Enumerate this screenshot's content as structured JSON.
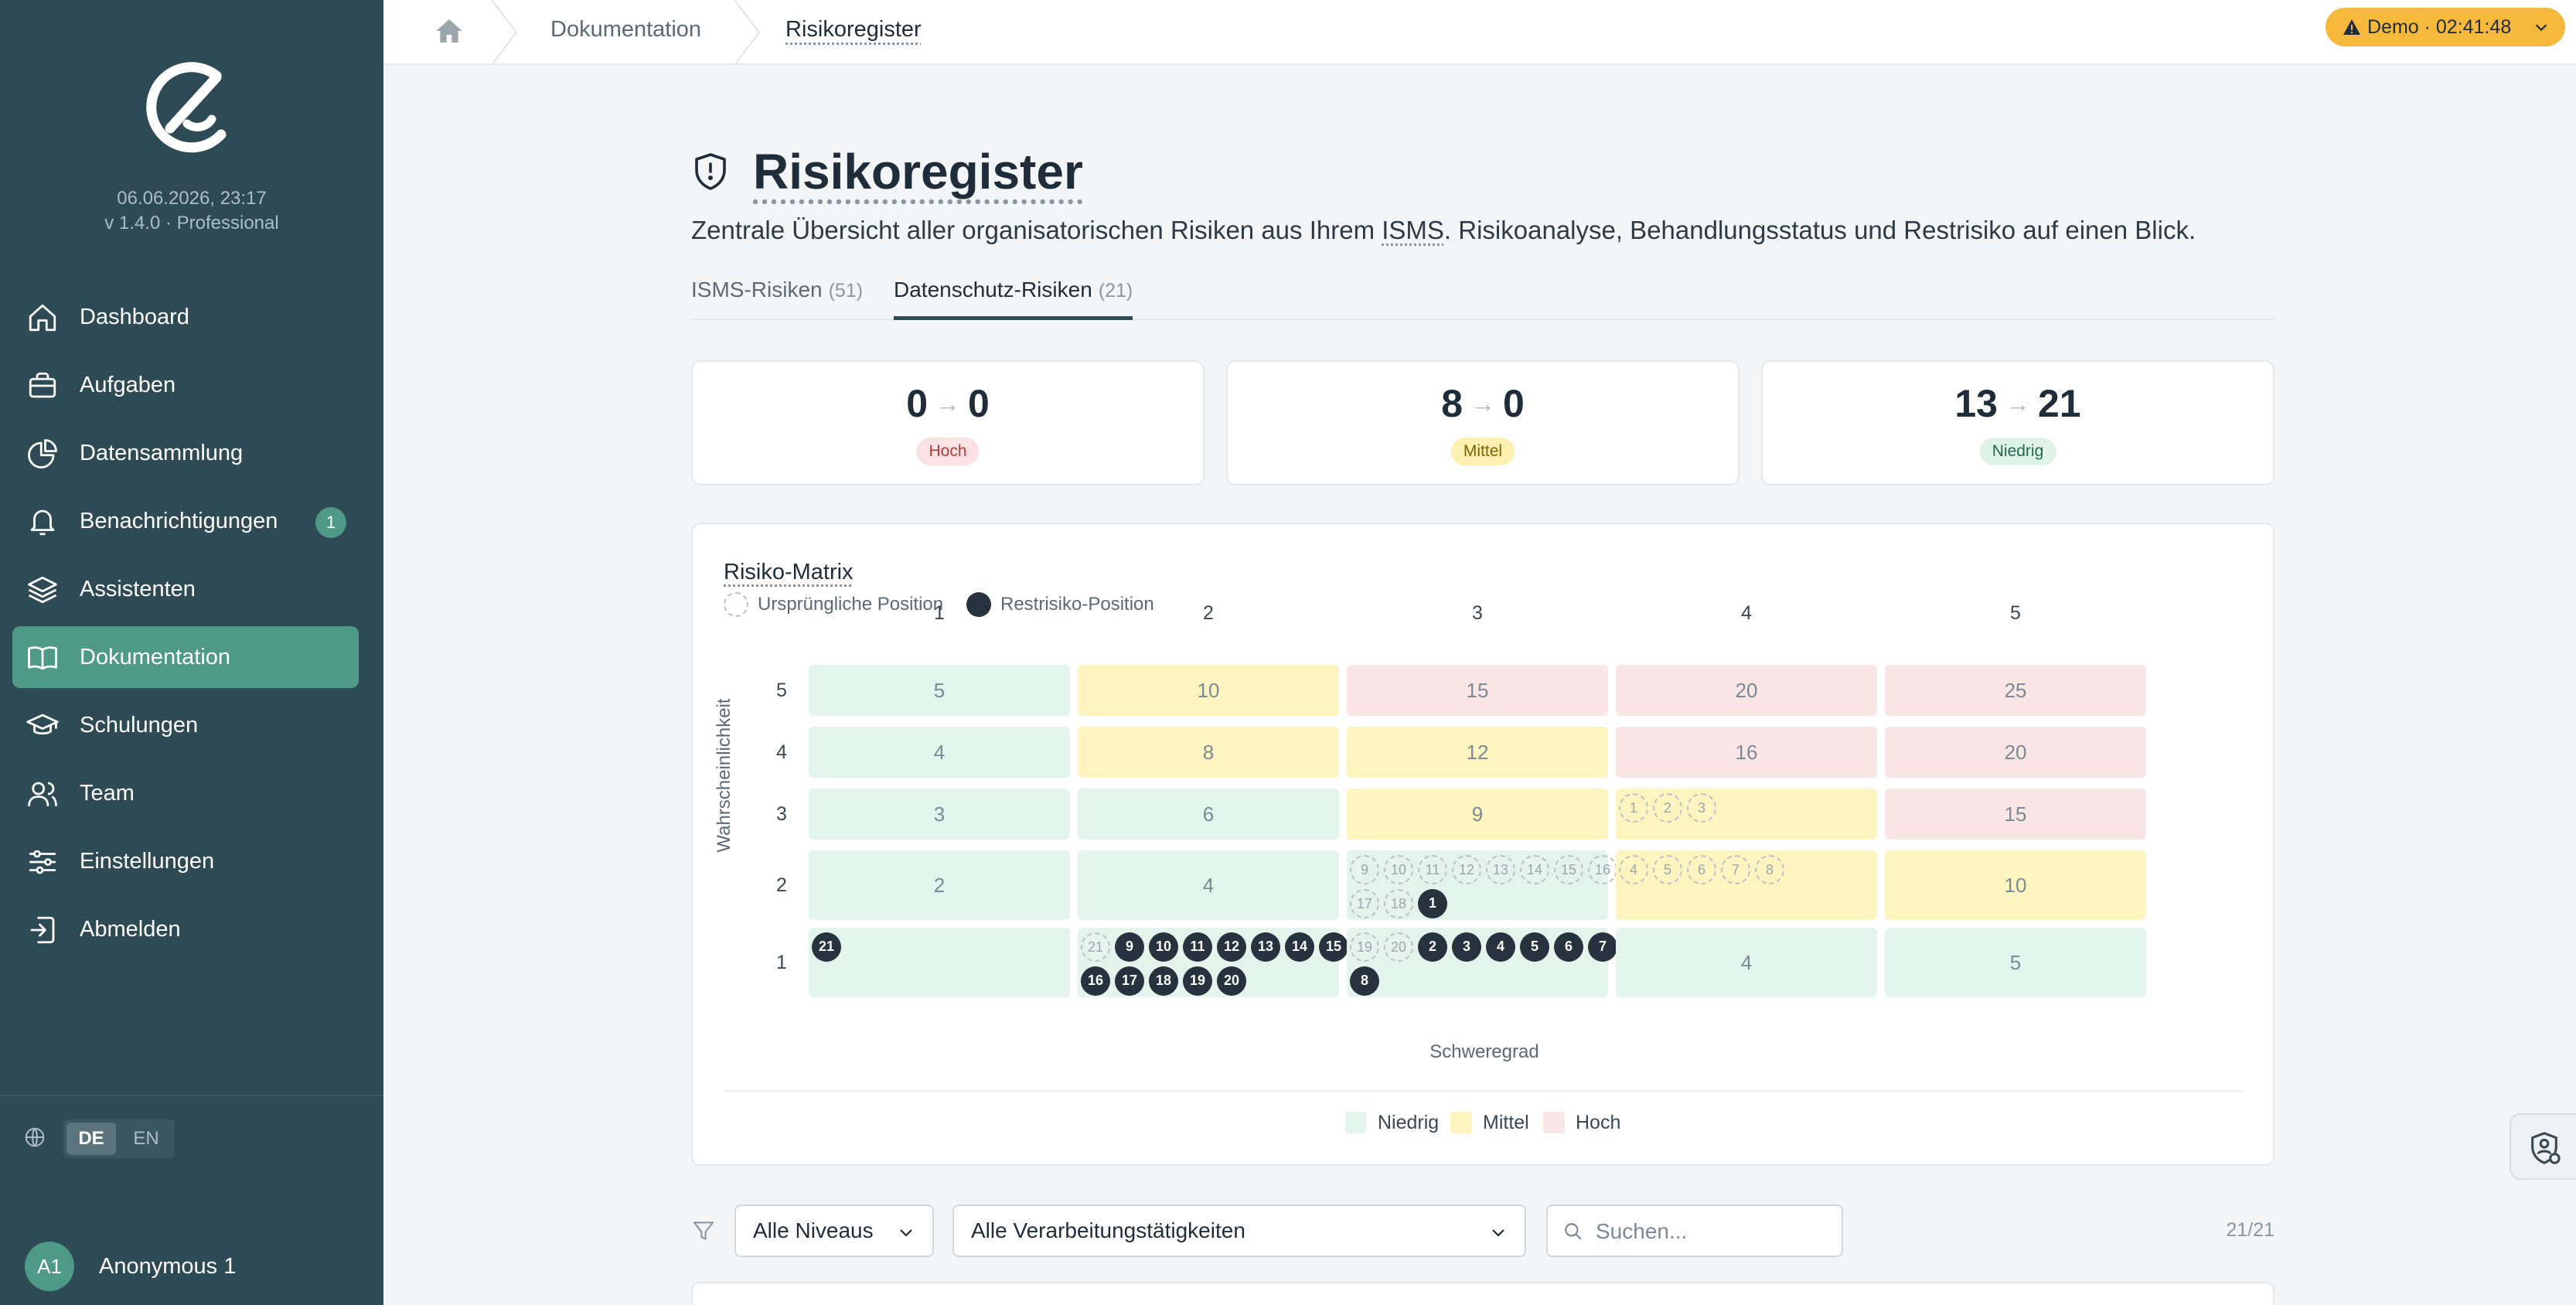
{
  "sidebar": {
    "date": "06.06.2026, 23:17",
    "version": "v 1.4.0 · Professional",
    "items": [
      {
        "label": "Dashboard",
        "icon": "home-icon"
      },
      {
        "label": "Aufgaben",
        "icon": "briefcase-icon"
      },
      {
        "label": "Datensammlung",
        "icon": "pie-chart-icon"
      },
      {
        "label": "Benachrichtigungen",
        "icon": "bell-icon",
        "badge": "1"
      },
      {
        "label": "Assistenten",
        "icon": "layers-icon"
      },
      {
        "label": "Dokumentation",
        "icon": "book-icon",
        "active": true
      },
      {
        "label": "Schulungen",
        "icon": "graduation-cap-icon"
      },
      {
        "label": "Team",
        "icon": "users-icon"
      },
      {
        "label": "Einstellungen",
        "icon": "sliders-icon"
      },
      {
        "label": "Abmelden",
        "icon": "logout-icon"
      }
    ],
    "languages": {
      "de": "DE",
      "en": "EN",
      "active": "DE"
    },
    "user": {
      "initials": "A1",
      "name": "Anonymous 1"
    }
  },
  "topbar": {
    "breadcrumb": [
      "Dokumentation",
      "Risikoregister"
    ],
    "demo_label": "Demo · 02:41:48"
  },
  "header": {
    "title": "Risikoregister",
    "desc_before": "Zentrale Übersicht aller organisatorischen Risiken aus Ihrem ",
    "desc_abbr": "ISMS",
    "desc_after": ". Risikoanalyse, Behandlungsstatus und Restrisiko auf einen Blick."
  },
  "tabs": [
    {
      "label": "ISMS-Risiken",
      "count": "(51)"
    },
    {
      "label": "Datenschutz-Risiken",
      "count": "(21)",
      "active": true
    }
  ],
  "stats": [
    {
      "from": "0",
      "to": "0",
      "label": "Hoch",
      "bg": "#fbe2e2",
      "fg": "#b23b3b"
    },
    {
      "from": "8",
      "to": "0",
      "label": "Mittel",
      "bg": "#fdf0b0",
      "fg": "#7d6300"
    },
    {
      "from": "13",
      "to": "21",
      "label": "Niedrig",
      "bg": "#dff3e9",
      "fg": "#22674f"
    }
  ],
  "matrix": {
    "title": "Risiko-Matrix",
    "legend_original": "Ursprüngliche Position",
    "legend_residual": "Restrisiko-Position",
    "y_label": "Wahrscheinlichkeit",
    "x_label": "Schweregrad",
    "cols": [
      "1",
      "2",
      "3",
      "4",
      "5"
    ],
    "rows": [
      {
        "label": "5",
        "cells": [
          {
            "score": "5",
            "level": "low"
          },
          {
            "score": "10",
            "level": "mid"
          },
          {
            "score": "15",
            "level": "high"
          },
          {
            "score": "20",
            "level": "high"
          },
          {
            "score": "25",
            "level": "high"
          }
        ]
      },
      {
        "label": "4",
        "cells": [
          {
            "score": "4",
            "level": "low"
          },
          {
            "score": "8",
            "level": "mid"
          },
          {
            "score": "12",
            "level": "mid"
          },
          {
            "score": "16",
            "level": "high"
          },
          {
            "score": "20",
            "level": "high"
          }
        ]
      },
      {
        "label": "3",
        "cells": [
          {
            "score": "3",
            "level": "low"
          },
          {
            "score": "6",
            "level": "low"
          },
          {
            "score": "9",
            "level": "mid"
          },
          {
            "score": "",
            "level": "mid",
            "orig": [
              "1",
              "2",
              "3"
            ],
            "rest": []
          },
          {
            "score": "15",
            "level": "high"
          }
        ]
      },
      {
        "label": "2",
        "cells": [
          {
            "score": "2",
            "level": "low"
          },
          {
            "score": "4",
            "level": "low"
          },
          {
            "score": "",
            "level": "low",
            "orig": [
              "9",
              "10",
              "11",
              "12",
              "13",
              "14",
              "15",
              "16",
              "17",
              "18"
            ],
            "rest": [
              "1"
            ]
          },
          {
            "score": "",
            "level": "mid",
            "orig": [
              "4",
              "5",
              "6",
              "7",
              "8"
            ],
            "rest": []
          },
          {
            "score": "10",
            "level": "mid"
          }
        ]
      },
      {
        "label": "1",
        "cells": [
          {
            "score": "",
            "level": "low",
            "orig": [],
            "rest": [
              "21"
            ]
          },
          {
            "score": "",
            "level": "low",
            "orig": [
              "21"
            ],
            "rest": [
              "9",
              "10",
              "11",
              "12",
              "13",
              "14",
              "15",
              "16",
              "17",
              "18",
              "19",
              "20"
            ]
          },
          {
            "score": "",
            "level": "low",
            "orig": [
              "19",
              "20"
            ],
            "rest": [
              "2",
              "3",
              "4",
              "5",
              "6",
              "7",
              "8"
            ]
          },
          {
            "score": "4",
            "level": "low"
          },
          {
            "score": "5",
            "level": "low"
          }
        ]
      }
    ],
    "levels": [
      {
        "label": "Niedrig",
        "color": "#e3f4ec"
      },
      {
        "label": "Mittel",
        "color": "#fdf4bf"
      },
      {
        "label": "Hoch",
        "color": "#fbe6e6"
      }
    ]
  },
  "filters": {
    "level_select": "Alle Niveaus",
    "activity_select": "Alle Verarbeitungstätigkeiten",
    "search_placeholder": "Suchen...",
    "result_count": "21/21"
  }
}
